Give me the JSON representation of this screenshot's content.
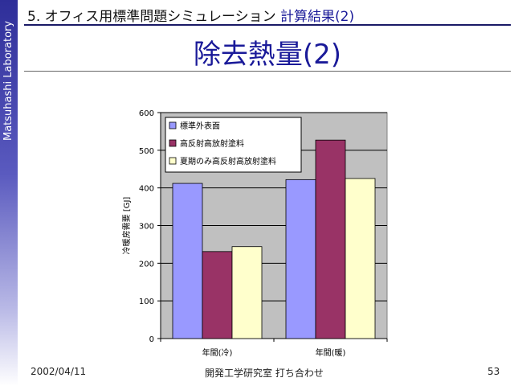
{
  "sidebar": {
    "lab_name": "Matsuhashi Laboratory"
  },
  "header": {
    "section_number": "5.",
    "section_title": "オフィス用標準問題シミュレーション",
    "section_subtitle": "計算結果(2)",
    "title": "除去熱量(2)"
  },
  "footer": {
    "date": "2002/04/11",
    "meeting": "開発工学研究室 打ち合わせ",
    "page_number": "53"
  },
  "colors": {
    "series1": "#9999ff",
    "series2": "#993366",
    "series3": "#ffffcc",
    "plot_background": "#c0c0c0",
    "title": "#1a1a99"
  },
  "chart_data": {
    "type": "bar",
    "categories": [
      "年間(冷)",
      "年間(暖)"
    ],
    "series": [
      {
        "name": "標準外表面",
        "values": [
          412,
          422
        ]
      },
      {
        "name": "高反射高放射塗料",
        "values": [
          231,
          527
        ]
      },
      {
        "name": "夏期のみ高反射高放射塗料",
        "values": [
          244,
          425
        ]
      }
    ],
    "ylabel": "冷暖房需要 [GJ]",
    "xlabel": "",
    "ylim": [
      0,
      600
    ],
    "yticks": [
      0,
      100,
      200,
      300,
      400,
      500,
      600
    ],
    "grid": true,
    "legend": "top-left"
  }
}
